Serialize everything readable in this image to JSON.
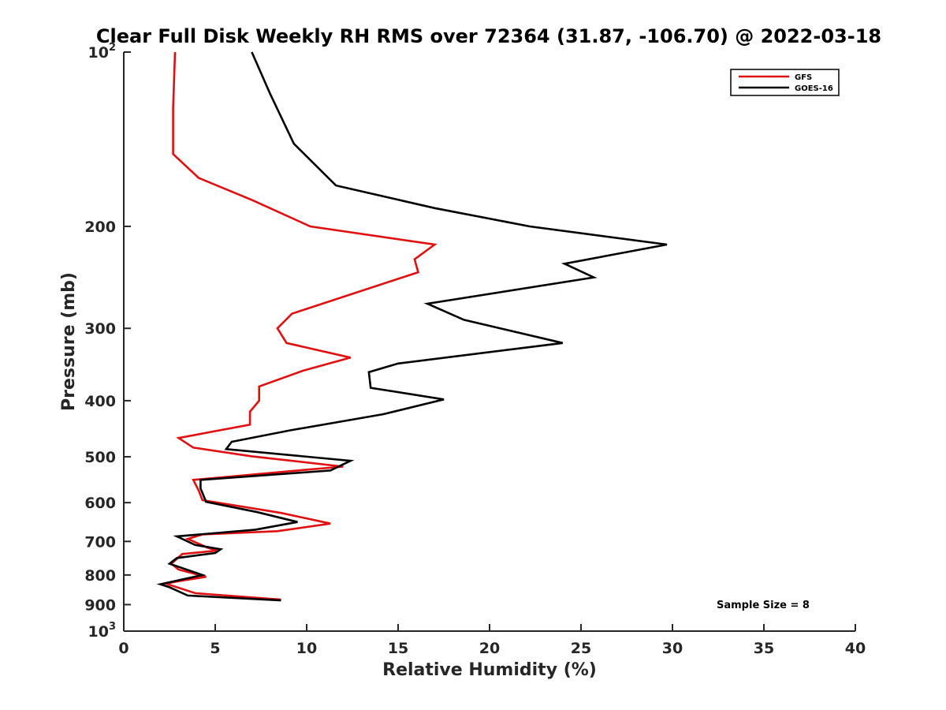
{
  "chart_data": {
    "type": "line",
    "title": "Clear Full Disk Weekly RH RMS over 72364 (31.87, -106.70) @ 2022-03-18",
    "xlabel": "Relative Humidity (%)",
    "ylabel": "Pressure (mb)",
    "xlim": [
      0,
      40
    ],
    "ylim": [
      100,
      1000
    ],
    "y_scale": "log",
    "y_reversed": true,
    "x_ticks": [
      "0",
      "5",
      "10",
      "15",
      "20",
      "25",
      "30",
      "35",
      "40"
    ],
    "y_ticks": [
      {
        "value": 100,
        "base": "10",
        "exp": "2"
      },
      {
        "value": 200,
        "base": "200",
        "exp": ""
      },
      {
        "value": 300,
        "base": "300",
        "exp": ""
      },
      {
        "value": 400,
        "base": "400",
        "exp": ""
      },
      {
        "value": 500,
        "base": "500",
        "exp": ""
      },
      {
        "value": 600,
        "base": "600",
        "exp": ""
      },
      {
        "value": 700,
        "base": "700",
        "exp": ""
      },
      {
        "value": 800,
        "base": "800",
        "exp": ""
      },
      {
        "value": 900,
        "base": "900",
        "exp": ""
      },
      {
        "value": 1000,
        "base": "10",
        "exp": "3"
      }
    ],
    "grid": false,
    "legend_position": "top-right",
    "annotation": "Sample Size = 8",
    "series": [
      {
        "name": "GFS",
        "color": "#e01010",
        "points": [
          [
            2.8,
            100
          ],
          [
            2.7,
            125
          ],
          [
            2.7,
            150
          ],
          [
            4.1,
            165
          ],
          [
            7.0,
            180
          ],
          [
            10.2,
            200
          ],
          [
            17.0,
            215
          ],
          [
            15.9,
            228
          ],
          [
            16.1,
            240
          ],
          [
            9.2,
            283
          ],
          [
            8.4,
            300
          ],
          [
            8.9,
            318
          ],
          [
            12.4,
            337
          ],
          [
            9.8,
            355
          ],
          [
            7.4,
            378
          ],
          [
            7.4,
            400
          ],
          [
            6.9,
            418
          ],
          [
            6.9,
            440
          ],
          [
            3.0,
            464
          ],
          [
            3.8,
            482
          ],
          [
            7.0,
            499
          ],
          [
            12.0,
            520
          ],
          [
            9.5,
            528
          ],
          [
            3.8,
            548
          ],
          [
            4.1,
            572
          ],
          [
            4.3,
            594
          ],
          [
            8.6,
            625
          ],
          [
            11.3,
            652
          ],
          [
            8.4,
            672
          ],
          [
            4.3,
            681
          ],
          [
            3.5,
            693
          ],
          [
            4.6,
            718
          ],
          [
            5.1,
            726
          ],
          [
            3.2,
            736
          ],
          [
            2.6,
            765
          ],
          [
            3.0,
            783
          ],
          [
            4.5,
            806
          ],
          [
            3.0,
            820
          ],
          [
            2.3,
            828
          ],
          [
            3.9,
            860
          ],
          [
            8.6,
            882
          ]
        ]
      },
      {
        "name": "GOES-16",
        "color": "#000000",
        "points": [
          [
            7.0,
            100
          ],
          [
            8.0,
            118
          ],
          [
            9.3,
            144
          ],
          [
            11.6,
            170
          ],
          [
            17.0,
            186
          ],
          [
            22.2,
            200
          ],
          [
            29.7,
            215
          ],
          [
            24.1,
            232
          ],
          [
            25.7,
            245
          ],
          [
            16.6,
            272
          ],
          [
            18.6,
            290
          ],
          [
            24.0,
            318
          ],
          [
            15.0,
            345
          ],
          [
            13.4,
            357
          ],
          [
            13.5,
            380
          ],
          [
            17.5,
            398
          ],
          [
            14.2,
            422
          ],
          [
            9.1,
            450
          ],
          [
            5.9,
            471
          ],
          [
            5.6,
            485
          ],
          [
            12.4,
            508
          ],
          [
            11.3,
            528
          ],
          [
            4.2,
            548
          ],
          [
            4.2,
            567
          ],
          [
            4.5,
            598
          ],
          [
            7.3,
            623
          ],
          [
            9.5,
            648
          ],
          [
            7.2,
            668
          ],
          [
            2.9,
            686
          ],
          [
            3.9,
            710
          ],
          [
            5.3,
            722
          ],
          [
            5.0,
            733
          ],
          [
            2.9,
            748
          ],
          [
            2.5,
            765
          ],
          [
            4.3,
            800
          ],
          [
            2.9,
            818
          ],
          [
            2.0,
            830
          ],
          [
            2.5,
            840
          ],
          [
            3.5,
            868
          ],
          [
            8.6,
            885
          ]
        ]
      }
    ]
  }
}
